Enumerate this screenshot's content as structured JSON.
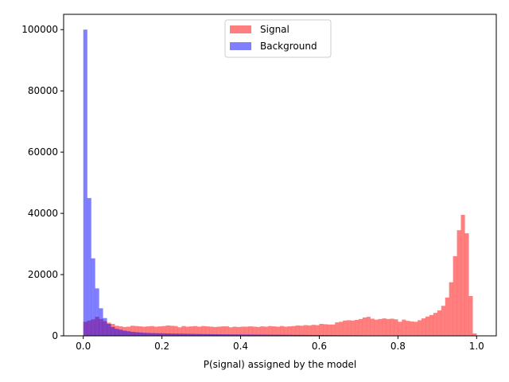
{
  "chart_data": {
    "type": "histogram",
    "xlabel": "P(signal) assigned by the model",
    "ylabel": "",
    "title": "",
    "xlim": [
      -0.05,
      1.05
    ],
    "ylim": [
      0,
      105000
    ],
    "xticks": [
      0.0,
      0.2,
      0.4,
      0.6,
      0.8,
      1.0
    ],
    "xtick_labels": [
      "0.0",
      "0.2",
      "0.4",
      "0.6",
      "0.8",
      "1.0"
    ],
    "yticks": [
      0,
      20000,
      40000,
      60000,
      80000,
      100000
    ],
    "ytick_labels": [
      "0",
      "20000",
      "40000",
      "60000",
      "80000",
      "100000"
    ],
    "bin_width": 0.01,
    "legend_position": "top-center",
    "series": [
      {
        "name": "Signal",
        "color": "#ff0000",
        "alpha": 0.5,
        "values": [
          4600,
          5000,
          5400,
          6200,
          5500,
          4800,
          4300,
          3900,
          3300,
          3100,
          2900,
          3000,
          3300,
          3200,
          3100,
          3000,
          3100,
          3200,
          3000,
          3100,
          3200,
          3400,
          3300,
          3200,
          2800,
          3200,
          3000,
          3100,
          3200,
          3000,
          3200,
          3100,
          3000,
          2900,
          3000,
          3100,
          3100,
          2800,
          3000,
          2900,
          3000,
          3000,
          3100,
          3000,
          2900,
          3100,
          3000,
          3200,
          3100,
          3000,
          3200,
          3000,
          3100,
          3200,
          3400,
          3300,
          3500,
          3400,
          3600,
          3500,
          3900,
          3800,
          3700,
          3700,
          4400,
          4600,
          5000,
          5100,
          5000,
          5200,
          5500,
          6000,
          6200,
          5600,
          5300,
          5500,
          5700,
          5500,
          5600,
          5400,
          4600,
          5300,
          4900,
          4700,
          4600,
          5100,
          5700,
          6300,
          6800,
          7500,
          8300,
          9800,
          12500,
          17500,
          26000,
          34500,
          39500,
          33500,
          13000,
          800
        ]
      },
      {
        "name": "Background",
        "color": "#0000ff",
        "alpha": 0.5,
        "values": [
          100000,
          45000,
          25300,
          15500,
          9000,
          5800,
          3900,
          2900,
          2300,
          2000,
          1700,
          1500,
          1300,
          1200,
          1100,
          1000,
          950,
          900,
          870,
          840,
          810,
          780,
          750,
          720,
          700,
          680,
          660,
          640,
          620,
          600,
          580,
          560,
          540,
          520,
          500,
          490,
          480,
          470,
          460,
          450,
          440,
          430,
          420,
          410,
          400,
          390,
          380,
          370,
          360,
          350,
          340,
          330,
          320,
          310,
          300,
          290,
          280,
          270,
          260,
          250,
          240,
          230,
          220,
          210,
          200,
          190,
          180,
          170,
          160,
          150,
          140,
          130,
          120,
          110,
          100,
          90,
          80,
          70,
          60,
          50,
          40,
          35,
          30,
          28,
          26,
          24,
          22,
          20,
          18,
          16,
          14,
          12,
          10,
          8,
          6,
          4,
          3,
          2,
          1,
          0
        ]
      }
    ]
  }
}
